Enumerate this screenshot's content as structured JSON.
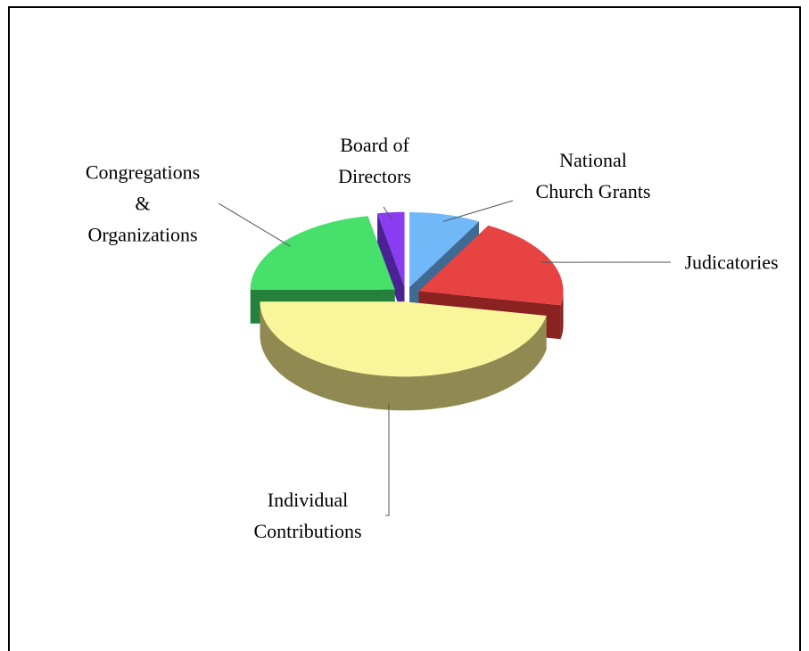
{
  "chart_data": {
    "type": "pie3d",
    "categories": [
      "National\nChurch Grants",
      "Judicatories",
      "Individual\nContributions",
      "Congregations\n&\nOrganizations",
      "Board of\nDirectors"
    ],
    "values": [
      8,
      20,
      47,
      22,
      3
    ],
    "colors": [
      "#71b8f8",
      "#e84343",
      "#f9f59a",
      "#46e06b",
      "#8a3cf2"
    ],
    "side_colors": [
      "#3f6a94",
      "#8a2222",
      "#908a52",
      "#23813b",
      "#4a2294"
    ],
    "exploded": true
  }
}
